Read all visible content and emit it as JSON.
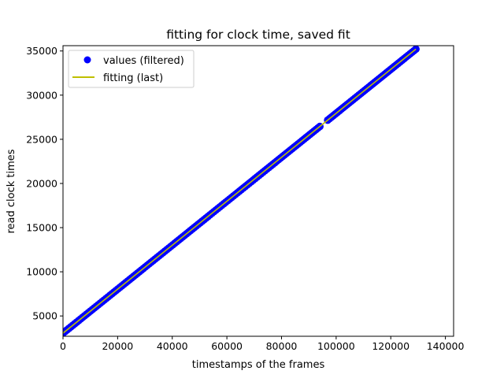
{
  "chart_data": {
    "type": "scatter",
    "title": "fitting for clock time, saved fit",
    "xlabel": "timestamps of the frames",
    "ylabel": "read clock times",
    "xlim": [
      0,
      143000
    ],
    "ylim": [
      2700,
      35600
    ],
    "xticks": [
      0,
      20000,
      40000,
      60000,
      80000,
      100000,
      120000,
      140000
    ],
    "yticks": [
      5000,
      10000,
      15000,
      20000,
      25000,
      30000,
      35000
    ],
    "grid": false,
    "legend": {
      "placement": "top-left",
      "entries": [
        {
          "label": "values (filtered)",
          "marker": "circle",
          "color": "#0000ff"
        },
        {
          "label": "fitting (last)",
          "marker": "line",
          "color": "#bfbf00"
        }
      ]
    },
    "series": [
      {
        "name": "values (filtered)",
        "kind": "points",
        "color": "#0000ff",
        "x_range": [
          0,
          129200
        ],
        "gaps": [
          [
            94500,
            96500
          ]
        ],
        "fit_slope": 0.2489,
        "fit_intercept": 3050
      },
      {
        "name": "fitting (last)",
        "kind": "line",
        "color": "#bfbf00",
        "x": [
          0,
          129200
        ],
        "y": [
          3050,
          35210
        ]
      }
    ]
  }
}
